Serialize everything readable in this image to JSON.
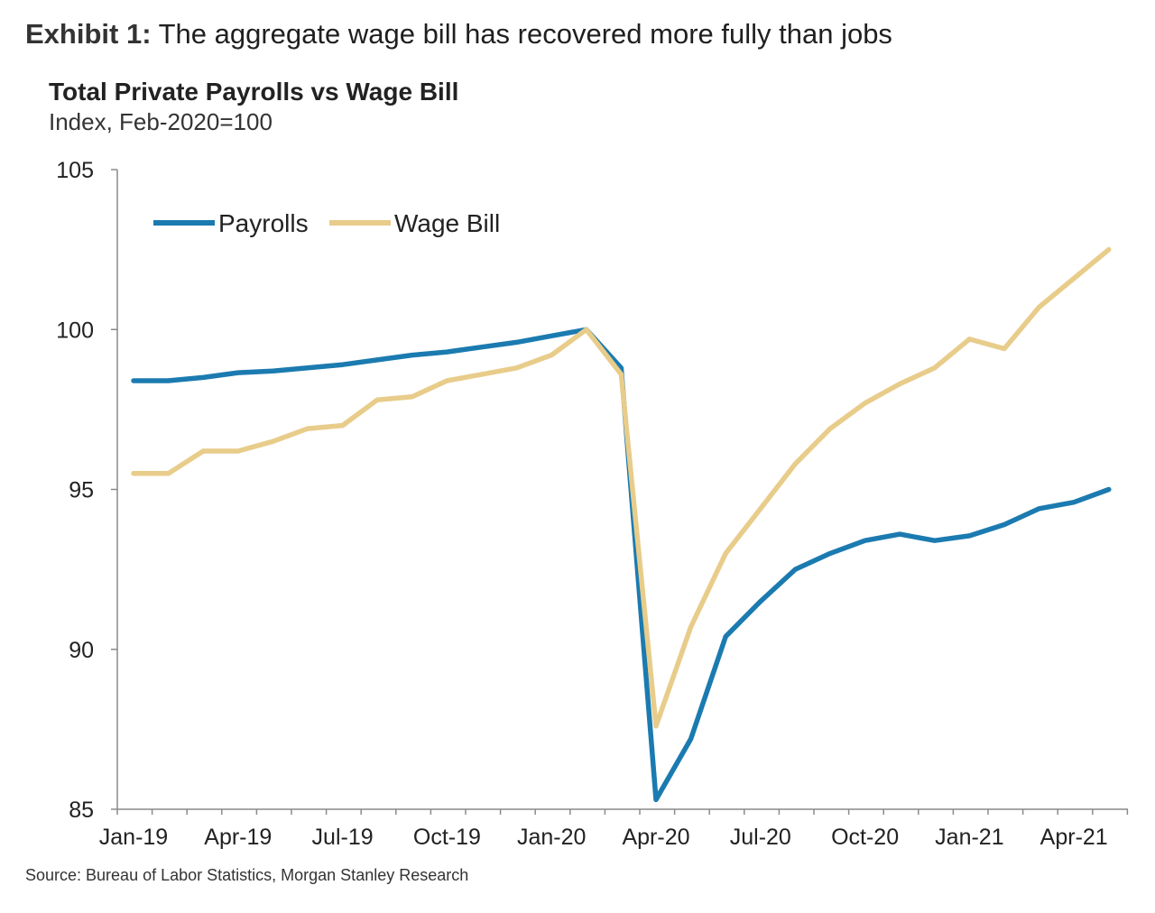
{
  "exhibit": {
    "label": "Exhibit 1:",
    "title": "The aggregate wage bill has recovered more fully than jobs"
  },
  "source": "Source: Bureau of Labor Statistics, Morgan Stanley Research",
  "chart_data": {
    "type": "line",
    "title": "Total Private Payrolls vs Wage Bill",
    "subtitle": "Index, Feb-2020=100",
    "xlabel": "",
    "ylabel": "",
    "ylim": [
      85,
      105
    ],
    "yticks": [
      85,
      90,
      95,
      100,
      105
    ],
    "grid": false,
    "legend_position": "top-left",
    "x": [
      "Jan-19",
      "Feb-19",
      "Mar-19",
      "Apr-19",
      "May-19",
      "Jun-19",
      "Jul-19",
      "Aug-19",
      "Sep-19",
      "Oct-19",
      "Nov-19",
      "Dec-19",
      "Jan-20",
      "Feb-20",
      "Mar-20",
      "Apr-20",
      "May-20",
      "Jun-20",
      "Jul-20",
      "Aug-20",
      "Sep-20",
      "Oct-20",
      "Nov-20",
      "Dec-20",
      "Jan-21",
      "Feb-21",
      "Mar-21",
      "Apr-21",
      "May-21"
    ],
    "tick_labels": [
      "Jan-19",
      "Apr-19",
      "Jul-19",
      "Oct-19",
      "Jan-20",
      "Apr-20",
      "Jul-20",
      "Oct-20",
      "Jan-21",
      "Apr-21"
    ],
    "series": [
      {
        "name": "Payrolls",
        "color": "#1b7bb0",
        "values": [
          98.4,
          98.4,
          98.5,
          98.65,
          98.7,
          98.8,
          98.9,
          99.05,
          99.2,
          99.3,
          99.45,
          99.6,
          99.8,
          100.0,
          98.8,
          85.3,
          87.2,
          90.4,
          91.5,
          92.5,
          93.0,
          93.4,
          93.6,
          93.4,
          93.55,
          93.9,
          94.4,
          94.6,
          95.0
        ]
      },
      {
        "name": "Wage Bill",
        "color": "#e8cc8a",
        "values": [
          95.5,
          95.5,
          96.2,
          96.2,
          96.5,
          96.9,
          97.0,
          97.8,
          97.9,
          98.4,
          98.6,
          98.8,
          99.2,
          100.0,
          98.6,
          87.6,
          90.7,
          93.0,
          94.4,
          95.8,
          96.9,
          97.7,
          98.3,
          98.8,
          99.7,
          99.4,
          100.7,
          101.6,
          102.5
        ]
      }
    ]
  }
}
